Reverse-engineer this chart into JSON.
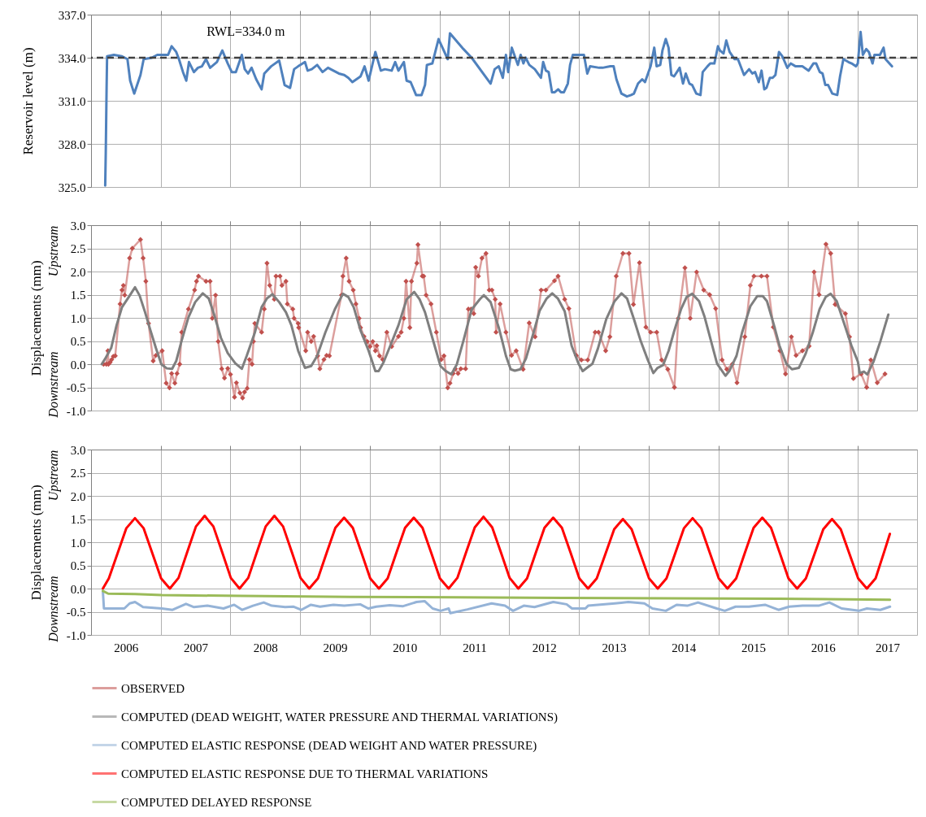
{
  "chart_data": [
    {
      "type": "line",
      "ylabel": "Reservoir level (m)",
      "xlim": [
        2006,
        2017.85
      ],
      "ylim": [
        325,
        337
      ],
      "xticks": [
        2007,
        2008,
        2009,
        2010,
        2011,
        2012,
        2013,
        2014,
        2015,
        2016,
        2017
      ],
      "yticks": [
        {
          "value": 325,
          "label": "325.0"
        },
        {
          "value": 328,
          "label": "328.0"
        },
        {
          "value": 331,
          "label": "331.0"
        },
        {
          "value": 334,
          "label": "334.0"
        },
        {
          "value": 337,
          "label": "337.0"
        }
      ],
      "tick_labels": "y",
      "grid": true,
      "ref_lines": [
        {
          "axis": "y",
          "value": 334,
          "label": "RWL=334.0 m",
          "color": "#404040",
          "line_style": "dashed"
        }
      ],
      "series": [
        {
          "color": "#4f81bd",
          "x": [
            2006.203,
            2006.211,
            2006.223,
            2006.23,
            2006.328,
            2006.444,
            2006.522,
            2006.561,
            2006.619,
            2006.709,
            2006.755,
            2006.872,
            2006.95,
            2007.105,
            2007.156,
            2007.222,
            2007.261,
            2007.319,
            2007.366,
            2007.405,
            2007.475,
            2007.533,
            2007.591,
            2007.649,
            2007.708,
            2007.805,
            2007.883,
            2007.961,
            2008.019,
            2008.077,
            2008.163,
            2008.205,
            2008.252,
            2008.303,
            2008.369,
            2008.447,
            2008.485,
            2008.583,
            2008.699,
            2008.777,
            2008.855,
            2008.913,
            2008.971,
            2009.069,
            2009.107,
            2009.166,
            2009.244,
            2009.321,
            2009.399,
            2009.555,
            2009.632,
            2009.691,
            2009.749,
            2009.866,
            2009.924,
            2009.982,
            2010.079,
            2010.157,
            2010.216,
            2010.313,
            2010.363,
            2010.41,
            2010.488,
            2010.527,
            2010.585,
            2010.663,
            2010.741,
            2010.791,
            2010.818,
            2010.896,
            2010.985,
            2011.032,
            2011.117,
            2011.149,
            2011.343,
            2011.46,
            2011.732,
            2011.79,
            2011.849,
            2011.907,
            2011.952,
            2011.984,
            2012.036,
            2012.123,
            2012.163,
            2012.203,
            2012.235,
            2012.287,
            2012.366,
            2012.454,
            2012.486,
            2012.525,
            2012.565,
            2012.613,
            2012.653,
            2012.701,
            2012.741,
            2012.784,
            2012.84,
            2012.872,
            2012.912,
            2013.071,
            2013.119,
            2013.159,
            2013.29,
            2013.338,
            2013.45,
            2013.497,
            2013.537,
            2013.609,
            2013.688,
            2013.748,
            2013.788,
            2013.847,
            2013.907,
            2013.947,
            2014.027,
            2014.08,
            2014.114,
            2014.166,
            2014.197,
            2014.245,
            2014.285,
            2014.325,
            2014.364,
            2014.444,
            2014.492,
            2014.532,
            2014.584,
            2014.624,
            2014.683,
            2014.743,
            2014.775,
            2014.843,
            2014.883,
            2014.942,
            2014.994,
            2015.022,
            2015.074,
            2015.113,
            2015.161,
            2015.233,
            2015.28,
            2015.368,
            2015.44,
            2015.487,
            2015.527,
            2015.579,
            2015.619,
            2015.658,
            2015.69,
            2015.738,
            2015.778,
            2015.818,
            2015.869,
            2015.917,
            2015.989,
            2016.037,
            2016.108,
            2016.156,
            2016.204,
            2016.295,
            2016.363,
            2016.403,
            2016.455,
            2016.494,
            2016.534,
            2016.574,
            2016.634,
            2016.705,
            2016.745,
            2016.793,
            2016.865,
            2016.912,
            2016.972,
            2017.0,
            2017.04,
            2017.072,
            2017.12,
            2017.159,
            2017.211,
            2017.239,
            2017.318,
            2017.37,
            2017.398,
            2017.49
          ],
          "values": [
            325.1,
            327.4,
            331.9,
            334.1,
            334.2,
            334.1,
            333.9,
            332.4,
            331.5,
            332.8,
            333.9,
            334.0,
            334.2,
            334.2,
            334.8,
            334.4,
            333.9,
            333.0,
            332.4,
            333.7,
            333.0,
            333.3,
            333.4,
            333.9,
            333.3,
            333.7,
            334.5,
            333.6,
            333.0,
            333.0,
            334.2,
            333.2,
            332.9,
            333.3,
            332.5,
            331.8,
            332.9,
            333.4,
            333.8,
            332.1,
            331.9,
            333.2,
            333.4,
            333.7,
            333.1,
            333.2,
            333.5,
            333.0,
            333.3,
            332.9,
            332.8,
            332.6,
            332.3,
            332.7,
            333.4,
            332.4,
            334.4,
            333.1,
            333.2,
            333.1,
            333.7,
            333.1,
            333.7,
            332.4,
            332.3,
            331.4,
            331.4,
            332.1,
            333.5,
            333.6,
            335.3,
            334.8,
            333.9,
            335.7,
            334.6,
            334.0,
            332.2,
            333.2,
            333.4,
            332.6,
            334.2,
            333.0,
            334.7,
            333.5,
            334.2,
            333.6,
            334.0,
            333.5,
            333.2,
            332.6,
            333.7,
            333.1,
            333.0,
            331.6,
            331.6,
            331.8,
            331.6,
            331.6,
            332.2,
            333.5,
            334.2,
            334.2,
            332.9,
            333.4,
            333.3,
            333.3,
            333.4,
            333.4,
            332.5,
            331.5,
            331.3,
            331.4,
            331.5,
            332.2,
            332.5,
            332.3,
            333.4,
            334.7,
            333.4,
            333.5,
            334.5,
            335.3,
            334.7,
            332.8,
            332.7,
            333.3,
            332.2,
            332.9,
            332.2,
            332.1,
            331.5,
            331.4,
            333.0,
            333.4,
            333.6,
            333.6,
            334.8,
            334.5,
            334.3,
            335.2,
            334.4,
            333.9,
            333.9,
            332.8,
            333.2,
            332.9,
            333.0,
            332.3,
            333.1,
            331.8,
            331.9,
            332.6,
            332.6,
            332.8,
            334.4,
            334.1,
            333.3,
            333.6,
            333.4,
            333.4,
            333.4,
            333.1,
            333.6,
            333.6,
            333.0,
            332.9,
            332.1,
            332.1,
            331.5,
            331.4,
            332.7,
            333.9,
            333.7,
            333.6,
            333.4,
            333.6,
            335.8,
            334.2,
            334.6,
            334.4,
            333.6,
            334.2,
            334.2,
            334.7,
            333.9,
            333.4
          ]
        }
      ]
    },
    {
      "type": "line",
      "ylabel": "Displacements (mm)",
      "annotations": [
        "Upstream",
        "Downstream"
      ],
      "xlim": [
        2006,
        2017.85
      ],
      "ylim": [
        -1,
        3
      ],
      "xticks": [
        2007,
        2008,
        2009,
        2010,
        2011,
        2012,
        2013,
        2014,
        2015,
        2016,
        2017
      ],
      "yticks": [
        {
          "value": -1,
          "label": "-1.0"
        },
        -0.5,
        {
          "value": 0,
          "label": "0.0"
        },
        0.5,
        {
          "value": 1,
          "label": "1.0"
        },
        1.5,
        {
          "value": 2,
          "label": "2.0"
        },
        2.5,
        {
          "value": 3,
          "label": "3.0"
        }
      ],
      "tick_labels": "y",
      "grid": true,
      "legend": "bottom",
      "series": [
        {
          "name": "OBSERVED",
          "color": "#c0504d",
          "marker": "diamond",
          "x": [
            2006.18,
            2006.219,
            2006.242,
            2006.25,
            2006.273,
            2006.296,
            2006.32,
            2006.347,
            2006.417,
            2006.444,
            2006.464,
            2006.483,
            2006.553,
            2006.592,
            2006.709,
            2006.747,
            2006.786,
            2006.825,
            2006.891,
            2006.93,
            2007.02,
            2007.078,
            2007.125,
            2007.156,
            2007.202,
            2007.233,
            2007.272,
            2007.3,
            2007.397,
            2007.486,
            2007.513,
            2007.541,
            2007.649,
            2007.708,
            2007.739,
            2007.786,
            2007.824,
            2007.875,
            2007.914,
            2007.961,
            2008.0,
            2008.058,
            2008.085,
            2008.135,
            2008.174,
            2008.202,
            2008.24,
            2008.272,
            2008.31,
            2008.33,
            2008.349,
            2008.447,
            2008.485,
            2008.524,
            2008.563,
            2008.629,
            2008.653,
            2008.711,
            2008.738,
            2008.796,
            2008.816,
            2008.894,
            2008.913,
            2008.971,
            2008.979,
            2009.08,
            2009.107,
            2009.158,
            2009.193,
            2009.251,
            2009.282,
            2009.341,
            2009.38,
            2009.419,
            2009.593,
            2009.613,
            2009.66,
            2009.702,
            2009.761,
            2009.8,
            2009.846,
            2009.866,
            2009.916,
            2009.963,
            2010.002,
            2010.041,
            2010.079,
            2010.099,
            2010.138,
            2010.184,
            2010.243,
            2010.313,
            2010.41,
            2010.449,
            2010.488,
            2010.519,
            2010.573,
            2010.597,
            2010.674,
            2010.69,
            2010.752,
            2010.772,
            2010.807,
            2010.877,
            2010.954,
            2011.024,
            2011.063,
            2011.117,
            2011.149,
            2011.195,
            2011.226,
            2011.265,
            2011.304,
            2011.374,
            2011.413,
            2011.452,
            2011.491,
            2011.518,
            2011.557,
            2011.608,
            2011.666,
            2011.712,
            2011.751,
            2011.798,
            2011.81,
            2011.868,
            2011.952,
            2012.032,
            2012.099,
            2012.199,
            2012.286,
            2012.37,
            2012.457,
            2012.525,
            2012.648,
            2012.7,
            2012.795,
            2012.855,
            2012.962,
            2013.034,
            2013.125,
            2013.232,
            2013.28,
            2013.383,
            2013.443,
            2013.534,
            2013.63,
            2013.717,
            2013.781,
            2013.868,
            2013.96,
            2014.027,
            2014.115,
            2014.186,
            2014.274,
            2014.369,
            2014.425,
            2014.52,
            2014.596,
            2014.687,
            2014.79,
            2014.874,
            2014.961,
            2015.053,
            2015.12,
            2015.2,
            2015.267,
            2015.379,
            2015.458,
            2015.51,
            2015.617,
            2015.697,
            2015.788,
            2015.884,
            2015.963,
            2016.047,
            2016.114,
            2016.206,
            2016.301,
            2016.373,
            2016.444,
            2016.543,
            2016.611,
            2016.675,
            2016.822,
            2016.881,
            2016.937,
            2017.048,
            2017.127,
            2017.187,
            2017.279,
            2017.39
          ],
          "values": [
            0.0,
            0.0,
            0.29,
            0.0,
            0.04,
            0.1,
            0.17,
            0.18,
            1.3,
            1.6,
            1.7,
            1.49,
            2.29,
            2.5,
            2.69,
            2.29,
            1.79,
            0.88,
            0.07,
            0.19,
            0.29,
            -0.41,
            -0.51,
            -0.2,
            -0.41,
            -0.2,
            0.0,
            0.69,
            1.19,
            1.6,
            1.79,
            1.9,
            1.79,
            1.79,
            0.99,
            1.49,
            0.49,
            -0.1,
            -0.3,
            -0.09,
            -0.22,
            -0.71,
            -0.4,
            -0.62,
            -0.73,
            -0.6,
            -0.52,
            0.1,
            0.0,
            0.49,
            0.88,
            0.69,
            1.19,
            2.18,
            1.7,
            1.4,
            1.9,
            1.9,
            1.7,
            1.79,
            1.3,
            1.19,
            0.99,
            0.88,
            0.79,
            0.29,
            0.69,
            0.49,
            0.6,
            0.18,
            -0.1,
            0.1,
            0.19,
            0.18,
            1.49,
            1.9,
            2.29,
            1.79,
            1.6,
            1.3,
            0.99,
            0.79,
            0.6,
            0.49,
            0.38,
            0.49,
            0.29,
            0.4,
            0.18,
            0.1,
            0.69,
            0.38,
            0.6,
            0.69,
            0.99,
            1.79,
            0.79,
            1.79,
            2.18,
            2.58,
            1.9,
            1.9,
            1.49,
            1.3,
            0.69,
            0.1,
            0.18,
            -0.51,
            -0.41,
            -0.2,
            -0.1,
            -0.2,
            -0.1,
            -0.1,
            1.19,
            1.19,
            1.09,
            2.09,
            1.9,
            2.29,
            2.39,
            1.6,
            1.6,
            1.4,
            0.69,
            1.3,
            0.69,
            0.19,
            0.29,
            -0.11,
            0.89,
            0.59,
            1.6,
            1.6,
            1.8,
            1.9,
            1.4,
            1.2,
            0.19,
            0.09,
            0.09,
            0.69,
            0.69,
            0.29,
            0.59,
            1.9,
            2.39,
            2.39,
            1.29,
            2.19,
            0.8,
            0.69,
            0.69,
            0.09,
            -0.11,
            -0.5,
            0.99,
            2.08,
            0.99,
            1.99,
            1.6,
            1.5,
            1.2,
            0.09,
            -0.11,
            0.0,
            -0.4,
            0.59,
            1.7,
            1.9,
            1.9,
            1.9,
            0.8,
            0.29,
            -0.21,
            0.59,
            0.19,
            0.29,
            0.39,
            1.99,
            1.5,
            2.59,
            2.39,
            1.29,
            1.09,
            0.59,
            -0.31,
            -0.21,
            -0.5,
            0.09,
            -0.4,
            -0.21
          ]
        },
        {
          "name": "COMPUTED (DEAD WEIGHT, WATER PRESSURE AND THERMAL VARIATIONS)",
          "color": "#7f7f7f",
          "x": [
            2006.153,
            2006.211,
            2006.289,
            2006.366,
            2006.444,
            2006.541,
            2006.631,
            2006.697,
            2006.775,
            2006.852,
            2006.93,
            2007.008,
            2007.086,
            2007.163,
            2007.222,
            2007.3,
            2007.397,
            2007.494,
            2007.603,
            2007.688,
            2007.766,
            2007.863,
            2007.961,
            2008.069,
            2008.163,
            2008.233,
            2008.349,
            2008.447,
            2008.524,
            2008.602,
            2008.699,
            2008.796,
            2008.874,
            2008.971,
            2009.069,
            2009.158,
            2009.244,
            2009.36,
            2009.496,
            2009.613,
            2009.691,
            2009.768,
            2009.866,
            2009.982,
            2010.079,
            2010.126,
            2010.196,
            2010.293,
            2010.41,
            2010.527,
            2010.636,
            2010.713,
            2010.791,
            2010.896,
            2011.013,
            2011.09,
            2011.168,
            2011.246,
            2011.343,
            2011.46,
            2011.576,
            2011.635,
            2011.732,
            2011.849,
            2011.901,
            2011.952,
            2012.02,
            2012.08,
            2012.159,
            2012.239,
            2012.338,
            2012.437,
            2012.537,
            2012.616,
            2012.696,
            2012.795,
            2012.894,
            2012.994,
            2013.053,
            2013.113,
            2013.193,
            2013.272,
            2013.391,
            2013.511,
            2013.61,
            2013.689,
            2013.789,
            2013.888,
            2013.988,
            2014.067,
            2014.127,
            2014.206,
            2014.286,
            2014.365,
            2014.465,
            2014.544,
            2014.624,
            2014.723,
            2014.802,
            2014.862,
            2014.981,
            2015.101,
            2015.16,
            2015.26,
            2015.339,
            2015.458,
            2015.558,
            2015.637,
            2015.697,
            2015.796,
            2015.876,
            2015.975,
            2016.055,
            2016.154,
            2016.253,
            2016.353,
            2016.452,
            2016.539,
            2016.611,
            2016.698,
            2016.81,
            2016.909,
            2017.0,
            2017.028,
            2017.088,
            2017.136,
            2017.227,
            2017.327,
            2017.438
          ],
          "values": [
            0.0,
            0.14,
            0.35,
            0.84,
            1.23,
            1.45,
            1.66,
            1.48,
            1.12,
            0.73,
            0.35,
            0.0,
            -0.09,
            -0.1,
            0.07,
            0.51,
            1.01,
            1.34,
            1.53,
            1.42,
            1.07,
            0.57,
            0.24,
            0.02,
            -0.1,
            0.18,
            0.68,
            1.23,
            1.42,
            1.51,
            1.34,
            1.12,
            0.84,
            0.29,
            -0.08,
            -0.04,
            0.18,
            0.68,
            1.18,
            1.52,
            1.45,
            1.23,
            0.73,
            0.29,
            -0.15,
            -0.15,
            0.04,
            0.4,
            0.84,
            1.4,
            1.56,
            1.4,
            1.12,
            0.57,
            -0.04,
            -0.15,
            -0.22,
            -0.01,
            0.51,
            1.18,
            1.4,
            1.49,
            1.34,
            0.79,
            0.49,
            0.18,
            -0.11,
            -0.14,
            -0.11,
            0.12,
            0.63,
            1.16,
            1.42,
            1.53,
            1.42,
            1.14,
            0.4,
            0.01,
            -0.15,
            -0.08,
            0.01,
            0.34,
            0.97,
            1.36,
            1.53,
            1.42,
            0.97,
            0.49,
            0.09,
            -0.19,
            -0.08,
            -0.02,
            0.29,
            0.71,
            1.19,
            1.45,
            1.52,
            1.36,
            1.02,
            0.68,
            0.01,
            -0.25,
            -0.14,
            0.18,
            0.68,
            1.25,
            1.47,
            1.47,
            1.36,
            0.85,
            0.4,
            0.01,
            -0.11,
            -0.08,
            0.23,
            0.68,
            1.19,
            1.45,
            1.52,
            1.36,
            0.85,
            0.4,
            0.06,
            -0.19,
            -0.16,
            -0.22,
            0.06,
            0.51,
            1.07
          ]
        }
      ]
    },
    {
      "type": "line",
      "ylabel": "Displacements (mm)",
      "annotations": [
        "Upstream",
        "Downstream"
      ],
      "xlim": [
        2006,
        2017.85
      ],
      "ylim": [
        -1,
        3
      ],
      "xticks": [
        {
          "value": 2006.5,
          "label": "2006"
        },
        {
          "value": 2007.5,
          "label": "2007"
        },
        {
          "value": 2008.5,
          "label": "2008"
        },
        {
          "value": 2009.5,
          "label": "2009"
        },
        {
          "value": 2010.5,
          "label": "2010"
        },
        {
          "value": 2011.5,
          "label": "2011"
        },
        {
          "value": 2012.5,
          "label": "2012"
        },
        {
          "value": 2013.5,
          "label": "2013"
        },
        {
          "value": 2014.5,
          "label": "2014"
        },
        {
          "value": 2015.5,
          "label": "2015"
        },
        {
          "value": 2016.5,
          "label": "2016"
        },
        {
          "value": 2017.425,
          "label": "2017"
        },
        {
          "value": 2007,
          "label": null
        },
        {
          "value": 2008,
          "label": null
        },
        {
          "value": 2009,
          "label": null
        },
        {
          "value": 2010,
          "label": null
        },
        {
          "value": 2011,
          "label": null
        },
        {
          "value": 2012,
          "label": null
        },
        {
          "value": 2013,
          "label": null
        },
        {
          "value": 2014,
          "label": null
        },
        {
          "value": 2015,
          "label": null
        },
        {
          "value": 2016,
          "label": null
        },
        {
          "value": 2017,
          "label": null
        }
      ],
      "yticks": [
        {
          "value": -1,
          "label": "-1.0"
        },
        -0.5,
        {
          "value": 0,
          "label": "0.0"
        },
        0.5,
        {
          "value": 1,
          "label": "1.0"
        },
        1.5,
        {
          "value": 2,
          "label": "2.0"
        },
        2.5,
        {
          "value": 3,
          "label": "3.0"
        }
      ],
      "grid": true,
      "legend": "bottom",
      "series": [
        {
          "name": "COMPUTED ELASTIC RESPONSE (DEAD WEIGHT AND WATER PRESSURE)",
          "color": "#95b3d7",
          "x": [
            2006.169,
            2006.185,
            2006.477,
            2006.554,
            2006.631,
            2006.746,
            2007.015,
            2007.169,
            2007.362,
            2007.477,
            2007.669,
            2007.9,
            2008.054,
            2008.169,
            2008.323,
            2008.477,
            2008.592,
            2008.785,
            2008.9,
            2009.015,
            2009.154,
            2009.285,
            2009.477,
            2009.631,
            2009.862,
            2009.977,
            2010.092,
            2010.285,
            2010.477,
            2010.669,
            2010.785,
            2010.9,
            2011.015,
            2011.131,
            2011.154,
            2011.4,
            2011.746,
            2011.938,
            2012.054,
            2012.208,
            2012.362,
            2012.554,
            2012.631,
            2012.823,
            2012.9,
            2013.092,
            2013.131,
            2013.515,
            2013.708,
            2013.938,
            2014.054,
            2014.246,
            2014.4,
            2014.554,
            2014.708,
            2014.977,
            2015.092,
            2015.246,
            2015.438,
            2015.669,
            2015.862,
            2016.015,
            2016.208,
            2016.438,
            2016.592,
            2016.769,
            2017.015,
            2017.131,
            2017.323,
            2017.462
          ],
          "values": [
            -0.05,
            -0.43,
            -0.43,
            -0.32,
            -0.29,
            -0.4,
            -0.43,
            -0.46,
            -0.33,
            -0.4,
            -0.37,
            -0.43,
            -0.35,
            -0.46,
            -0.37,
            -0.3,
            -0.37,
            -0.4,
            -0.39,
            -0.46,
            -0.35,
            -0.39,
            -0.35,
            -0.37,
            -0.34,
            -0.43,
            -0.39,
            -0.36,
            -0.38,
            -0.29,
            -0.27,
            -0.43,
            -0.48,
            -0.43,
            -0.53,
            -0.45,
            -0.32,
            -0.37,
            -0.48,
            -0.37,
            -0.4,
            -0.32,
            -0.29,
            -0.34,
            -0.43,
            -0.43,
            -0.37,
            -0.32,
            -0.29,
            -0.32,
            -0.43,
            -0.48,
            -0.35,
            -0.37,
            -0.3,
            -0.43,
            -0.48,
            -0.39,
            -0.39,
            -0.35,
            -0.46,
            -0.39,
            -0.37,
            -0.37,
            -0.3,
            -0.43,
            -0.48,
            -0.43,
            -0.46,
            -0.39
          ]
        },
        {
          "name": "COMPUTED ELASTIC RESPONSE DUE TO THERMAL VARIATIONS",
          "color": "#ff0000",
          "x": [
            2006.17,
            2006.255,
            2006.38,
            2006.505,
            2006.63,
            2006.755,
            2006.88,
            2007.005,
            2007.13,
            2007.255,
            2007.38,
            2007.505,
            2007.63,
            2007.755,
            2007.88,
            2008.005,
            2008.13,
            2008.255,
            2008.38,
            2008.505,
            2008.63,
            2008.755,
            2008.88,
            2009.005,
            2009.13,
            2009.255,
            2009.38,
            2009.505,
            2009.63,
            2009.755,
            2009.88,
            2010.005,
            2010.13,
            2010.255,
            2010.38,
            2010.505,
            2010.63,
            2010.755,
            2010.88,
            2011.005,
            2011.13,
            2011.255,
            2011.38,
            2011.505,
            2011.63,
            2011.755,
            2011.88,
            2012.005,
            2012.13,
            2012.255,
            2012.38,
            2012.505,
            2012.63,
            2012.755,
            2012.88,
            2013.005,
            2013.13,
            2013.255,
            2013.38,
            2013.505,
            2013.63,
            2013.755,
            2013.88,
            2014.005,
            2014.13,
            2014.255,
            2014.38,
            2014.505,
            2014.63,
            2014.755,
            2014.88,
            2015.005,
            2015.13,
            2015.255,
            2015.38,
            2015.505,
            2015.63,
            2015.755,
            2015.88,
            2016.005,
            2016.13,
            2016.255,
            2016.38,
            2016.505,
            2016.63,
            2016.755,
            2016.88,
            2017.005,
            2017.13,
            2017.255,
            2017.38,
            2017.46
          ],
          "values": [
            0.0,
            0.22,
            0.76,
            1.3,
            1.52,
            1.3,
            0.76,
            0.22,
            0.0,
            0.23,
            0.79,
            1.34,
            1.57,
            1.34,
            0.79,
            0.23,
            0.0,
            0.23,
            0.79,
            1.34,
            1.57,
            1.34,
            0.79,
            0.23,
            0.0,
            0.22,
            0.77,
            1.31,
            1.53,
            1.31,
            0.77,
            0.22,
            0.0,
            0.22,
            0.77,
            1.31,
            1.53,
            1.31,
            0.77,
            0.22,
            0.0,
            0.23,
            0.78,
            1.32,
            1.55,
            1.32,
            0.78,
            0.23,
            0.0,
            0.22,
            0.77,
            1.31,
            1.53,
            1.31,
            0.77,
            0.22,
            0.0,
            0.22,
            0.75,
            1.28,
            1.5,
            1.28,
            0.75,
            0.22,
            0.0,
            0.22,
            0.76,
            1.3,
            1.52,
            1.3,
            0.76,
            0.22,
            0.0,
            0.22,
            0.77,
            1.31,
            1.53,
            1.31,
            0.77,
            0.22,
            0.0,
            0.22,
            0.75,
            1.28,
            1.5,
            1.28,
            0.75,
            0.22,
            0.0,
            0.22,
            0.8,
            1.18
          ]
        },
        {
          "name": "COMPUTED DELAYED RESPONSE",
          "color": "#9bbb59",
          "x": [
            2006.169,
            2006.246,
            2006.631,
            2007.015,
            2008.169,
            2009.708,
            2011.246,
            2012.785,
            2014.323,
            2015.862,
            2017.462
          ],
          "values": [
            -0.05,
            -0.11,
            -0.12,
            -0.14,
            -0.16,
            -0.18,
            -0.19,
            -0.2,
            -0.21,
            -0.22,
            -0.24
          ]
        }
      ]
    }
  ]
}
